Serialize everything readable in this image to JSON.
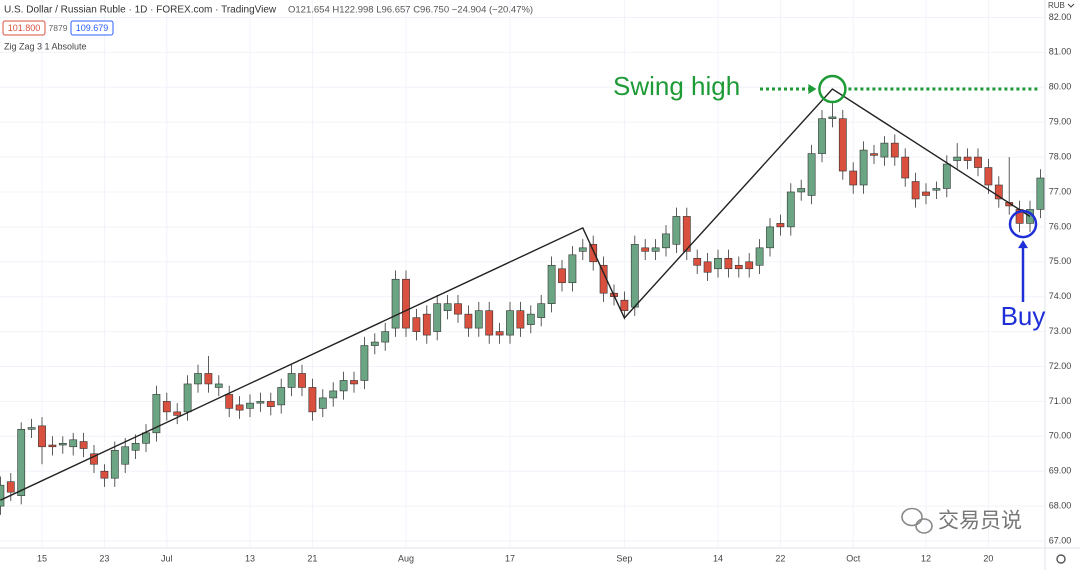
{
  "chart_data": {
    "type": "candlestick",
    "title": "U.S. Dollar / Russian Ruble · 1D · FOREX.com · TradingView",
    "ohlc_text": "O121.654 H122.998 L96.657 C96.750 −24.904 (−20.47%)",
    "legend_values": [
      "101.800",
      "7879",
      "109.679"
    ],
    "indicator": "Zig Zag 3 1 Absolute",
    "currency": "RUB",
    "watermark": "交易员说",
    "up_color": "#6ba583",
    "down_color": "#d9503f",
    "grid": true,
    "categories": [
      null,
      null,
      null,
      null,
      "15",
      null,
      null,
      null,
      null,
      null,
      "23",
      null,
      null,
      null,
      null,
      null,
      "Jul",
      null,
      null,
      null,
      null,
      null,
      null,
      null,
      "13",
      null,
      null,
      null,
      null,
      null,
      "21",
      null,
      null,
      null,
      null,
      null,
      null,
      null,
      null,
      "Aug",
      null,
      null,
      null,
      null,
      null,
      null,
      null,
      null,
      null,
      "17",
      null,
      null,
      null,
      null,
      null,
      null,
      null,
      null,
      null,
      null,
      "Sep",
      null,
      null,
      null,
      null,
      null,
      null,
      null,
      null,
      "14",
      null,
      null,
      null,
      null,
      null,
      "22",
      null,
      null,
      null,
      null,
      null,
      null,
      "Oct",
      null,
      null,
      null,
      null,
      null,
      null,
      "12",
      null,
      null,
      null,
      null,
      null,
      "20",
      null,
      null,
      null,
      null,
      null
    ],
    "open": [
      68.0,
      68.7,
      68.3,
      70.2,
      70.3,
      69.75,
      69.75,
      69.7,
      69.85,
      69.5,
      69.0,
      68.8,
      69.2,
      69.6,
      69.8,
      70.1,
      71.0,
      70.7,
      70.7,
      71.5,
      71.8,
      71.4,
      71.2,
      70.9,
      70.8,
      70.95,
      71.0,
      70.9,
      71.4,
      71.8,
      71.4,
      70.8,
      71.1,
      71.3,
      71.6,
      71.6,
      72.6,
      72.7,
      73.1,
      74.5,
      73.4,
      73.5,
      73.0,
      73.6,
      73.8,
      73.5,
      73.1,
      73.6,
      73.0,
      72.9,
      73.6,
      73.2,
      73.4,
      73.8,
      74.8,
      74.4,
      75.3,
      75.5,
      74.9,
      74.1,
      73.9,
      73.7,
      75.4,
      75.3,
      75.4,
      75.5,
      76.3,
      75.1,
      75.0,
      74.8,
      75.1,
      74.9,
      75.0,
      74.9,
      75.4,
      76.1,
      76.0,
      77.0,
      76.9,
      78.1,
      79.1,
      79.1,
      77.6,
      77.2,
      78.1,
      78.0,
      78.4,
      78.0,
      77.3,
      77.0,
      77.05,
      77.1,
      77.9,
      78.0,
      78.0,
      77.7,
      77.2,
      76.7,
      76.5,
      76.1,
      76.5
    ],
    "high": [
      68.85,
      68.95,
      70.4,
      70.5,
      70.55,
      70.0,
      70.0,
      70.1,
      70.1,
      69.75,
      69.2,
      69.85,
      69.95,
      70.05,
      70.35,
      71.45,
      71.25,
      70.95,
      71.75,
      72.05,
      72.3,
      71.75,
      71.45,
      71.15,
      71.2,
      71.25,
      71.25,
      71.65,
      72.05,
      72.05,
      71.65,
      71.35,
      71.55,
      71.85,
      71.85,
      72.85,
      72.95,
      73.25,
      74.75,
      74.75,
      73.65,
      73.75,
      74.05,
      74.05,
      74.05,
      73.75,
      73.85,
      73.85,
      73.25,
      73.85,
      73.85,
      73.75,
      74.05,
      75.15,
      75.05,
      75.45,
      75.65,
      75.75,
      75.15,
      74.35,
      74.15,
      75.75,
      75.65,
      75.65,
      76.05,
      76.55,
      76.55,
      75.35,
      75.25,
      75.35,
      75.35,
      75.15,
      75.25,
      75.65,
      76.25,
      76.35,
      77.25,
      77.35,
      78.35,
      79.35,
      79.6,
      79.35,
      77.85,
      78.45,
      78.35,
      78.6,
      78.65,
      78.25,
      77.55,
      77.25,
      77.3,
      78.05,
      78.4,
      78.25,
      78.25,
      77.95,
      77.45,
      78.0,
      76.75,
      76.75,
      77.65
    ],
    "low": [
      67.75,
      68.15,
      68.05,
      69.95,
      69.2,
      69.45,
      69.5,
      69.45,
      69.4,
      68.95,
      68.55,
      68.55,
      68.95,
      69.35,
      69.55,
      69.85,
      70.45,
      70.35,
      70.45,
      71.25,
      71.25,
      71.15,
      70.55,
      70.5,
      70.55,
      70.7,
      70.6,
      70.65,
      71.15,
      71.15,
      70.45,
      70.55,
      70.85,
      71.05,
      71.25,
      71.35,
      72.35,
      72.45,
      72.85,
      72.85,
      72.75,
      72.65,
      72.75,
      73.35,
      73.25,
      72.85,
      72.85,
      72.65,
      72.65,
      72.65,
      72.85,
      72.95,
      73.15,
      73.55,
      74.15,
      74.15,
      75.05,
      74.75,
      73.85,
      73.75,
      73.35,
      73.45,
      75.05,
      75.05,
      75.15,
      75.25,
      75.05,
      74.65,
      74.45,
      74.55,
      74.55,
      74.55,
      74.55,
      74.65,
      75.15,
      75.75,
      75.75,
      76.75,
      76.65,
      77.85,
      78.85,
      77.35,
      76.95,
      76.95,
      77.8,
      77.75,
      77.75,
      77.15,
      76.55,
      76.65,
      76.8,
      76.85,
      77.65,
      77.65,
      77.45,
      76.95,
      76.55,
      76.35,
      75.85,
      75.85,
      76.25
    ],
    "close": [
      68.6,
      68.4,
      70.2,
      70.25,
      69.7,
      69.7,
      69.8,
      69.9,
      69.65,
      69.2,
      68.8,
      69.6,
      69.7,
      69.8,
      70.1,
      71.2,
      70.7,
      70.6,
      71.5,
      71.8,
      71.5,
      71.5,
      70.8,
      70.75,
      70.95,
      71.0,
      70.85,
      71.4,
      71.8,
      71.4,
      70.7,
      71.1,
      71.3,
      71.6,
      71.5,
      72.6,
      72.7,
      73.0,
      74.5,
      73.1,
      73.0,
      72.9,
      73.8,
      73.8,
      73.5,
      73.1,
      73.6,
      72.9,
      72.9,
      73.6,
      73.1,
      73.5,
      73.8,
      74.9,
      74.4,
      75.2,
      75.4,
      75.0,
      74.1,
      74.0,
      73.6,
      75.5,
      75.3,
      75.4,
      75.8,
      76.3,
      75.3,
      74.9,
      74.7,
      75.1,
      74.8,
      74.8,
      74.8,
      75.4,
      76.0,
      76.0,
      77.0,
      77.1,
      78.1,
      79.1,
      79.15,
      77.6,
      77.2,
      78.2,
      78.05,
      78.4,
      78.0,
      77.4,
      76.8,
      76.9,
      77.1,
      77.8,
      78.0,
      77.9,
      77.7,
      77.2,
      76.8,
      76.6,
      76.1,
      76.5,
      77.4
    ],
    "zigzag": {
      "x": [
        0,
        56,
        60,
        80,
        99
      ],
      "values": [
        68.17,
        75.97,
        73.39,
        79.95,
        76.3
      ]
    },
    "annotations": [
      {
        "text": "Swing high",
        "color": "#1e9a36"
      },
      {
        "text": "Buy",
        "color": "#1f2fd8"
      }
    ],
    "ylim": [
      66.8,
      82.5
    ],
    "yticks": [
      {
        "value": 67,
        "label": "67.00"
      },
      {
        "value": 68,
        "label": "68.00"
      },
      {
        "value": 69,
        "label": "69.00"
      },
      {
        "value": 70,
        "label": "70.00"
      },
      {
        "value": 71,
        "label": "71.00"
      },
      {
        "value": 72,
        "label": "72.00"
      },
      {
        "value": 73,
        "label": "73.00"
      },
      {
        "value": 74,
        "label": "74.00"
      },
      {
        "value": 75,
        "label": "75.00"
      },
      {
        "value": 76,
        "label": "76.00"
      },
      {
        "value": 77,
        "label": "77.00"
      },
      {
        "value": 78,
        "label": "78.00"
      },
      {
        "value": 79,
        "label": "79.00"
      },
      {
        "value": 80,
        "label": "80.00"
      },
      {
        "value": 81,
        "label": "81.00"
      },
      {
        "value": 82,
        "label": "82.00"
      }
    ]
  }
}
